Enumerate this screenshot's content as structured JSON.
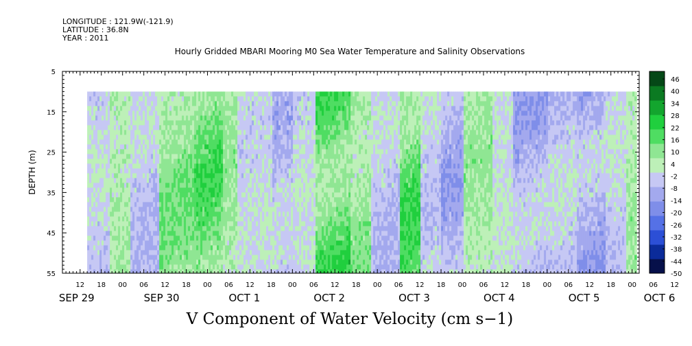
{
  "header": {
    "longitude": "LONGITUDE : 121.9W(-121.9)",
    "latitude": "LATITUDE : 36.8N",
    "year": "YEAR : 2011"
  },
  "chart_data": {
    "type": "heatmap",
    "title": "Hourly Gridded MBARI Mooring M0 Sea Water Temperature and Salinity Observations",
    "xlabel": "V Component of Water Velocity (cm s−1)",
    "ylabel": "DEPTH (m)",
    "y_ticks": [
      "5",
      "15",
      "25",
      "35",
      "45",
      "55"
    ],
    "y_range": [
      5,
      55
    ],
    "x_hour_ticks": [
      "12",
      "18",
      "00",
      "06",
      "12",
      "18",
      "00",
      "06",
      "12",
      "18",
      "00",
      "06",
      "12",
      "18",
      "00",
      "06",
      "12",
      "18",
      "00",
      "06",
      "12",
      "18",
      "00",
      "06",
      "12",
      "18",
      "00",
      "06",
      "12",
      "18",
      "00",
      "06"
    ],
    "x_dates": [
      "SEP 29",
      "SEP 30",
      "OCT  1",
      "OCT  2",
      "OCT  3",
      "OCT  4",
      "OCT  5",
      "OCT  6"
    ],
    "time_range_hours": [
      7,
      170
    ],
    "data_start_hour": 14,
    "depth_data_range": [
      10,
      55
    ],
    "colorbar_labels": [
      "46",
      "40",
      "34",
      "28",
      "22",
      "16",
      "10",
      "4",
      "-2",
      "-8",
      "-14",
      "-20",
      "-26",
      "-32",
      "-38",
      "-44",
      "-50"
    ],
    "color_stops": [
      "#06104a",
      "#0b2b9a",
      "#2c4fd6",
      "#5571e6",
      "#7f8ee9",
      "#a3a9ee",
      "#c6c8f4",
      "#bdf0b8",
      "#8fe693",
      "#4fdd62",
      "#20cf3e",
      "#13a52e",
      "#0b7a22",
      "#054817"
    ],
    "segments": [
      {
        "t0": 14,
        "t1": 20,
        "v": -6
      },
      {
        "t0": 20,
        "t1": 26,
        "v": 4
      },
      {
        "t0": 26,
        "t1": 34,
        "v": -8
      },
      {
        "t0": 34,
        "t1": 44,
        "v": 10
      },
      {
        "t0": 44,
        "t1": 52,
        "v": 14
      },
      {
        "t0": 52,
        "t1": 56,
        "v": 6
      },
      {
        "t0": 56,
        "t1": 66,
        "v": -4
      },
      {
        "t0": 66,
        "t1": 72,
        "v": -10
      },
      {
        "t0": 72,
        "t1": 78,
        "v": -4
      },
      {
        "t0": 78,
        "t1": 88,
        "v": 18
      },
      {
        "t0": 88,
        "t1": 94,
        "v": 8
      },
      {
        "t0": 94,
        "t1": 102,
        "v": -8
      },
      {
        "t0": 102,
        "t1": 108,
        "v": 16
      },
      {
        "t0": 108,
        "t1": 114,
        "v": -6
      },
      {
        "t0": 114,
        "t1": 120,
        "v": -12
      },
      {
        "t0": 120,
        "t1": 128,
        "v": 6
      },
      {
        "t0": 128,
        "t1": 134,
        "v": -2
      },
      {
        "t0": 134,
        "t1": 144,
        "v": -12
      },
      {
        "t0": 144,
        "t1": 152,
        "v": -8
      },
      {
        "t0": 152,
        "t1": 160,
        "v": -14
      },
      {
        "t0": 160,
        "t1": 166,
        "v": -6
      },
      {
        "t0": 166,
        "t1": 169,
        "v": 6
      }
    ]
  }
}
